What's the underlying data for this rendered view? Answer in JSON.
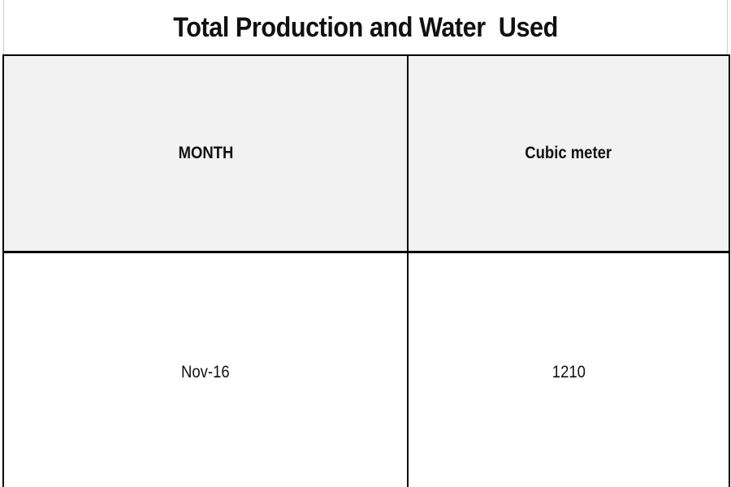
{
  "chart_data": {
    "type": "table",
    "title": "Total Production and Water  Used",
    "columns": [
      "MONTH",
      "Cubic meter"
    ],
    "rows": [
      [
        "Nov-16",
        "1210"
      ]
    ]
  }
}
